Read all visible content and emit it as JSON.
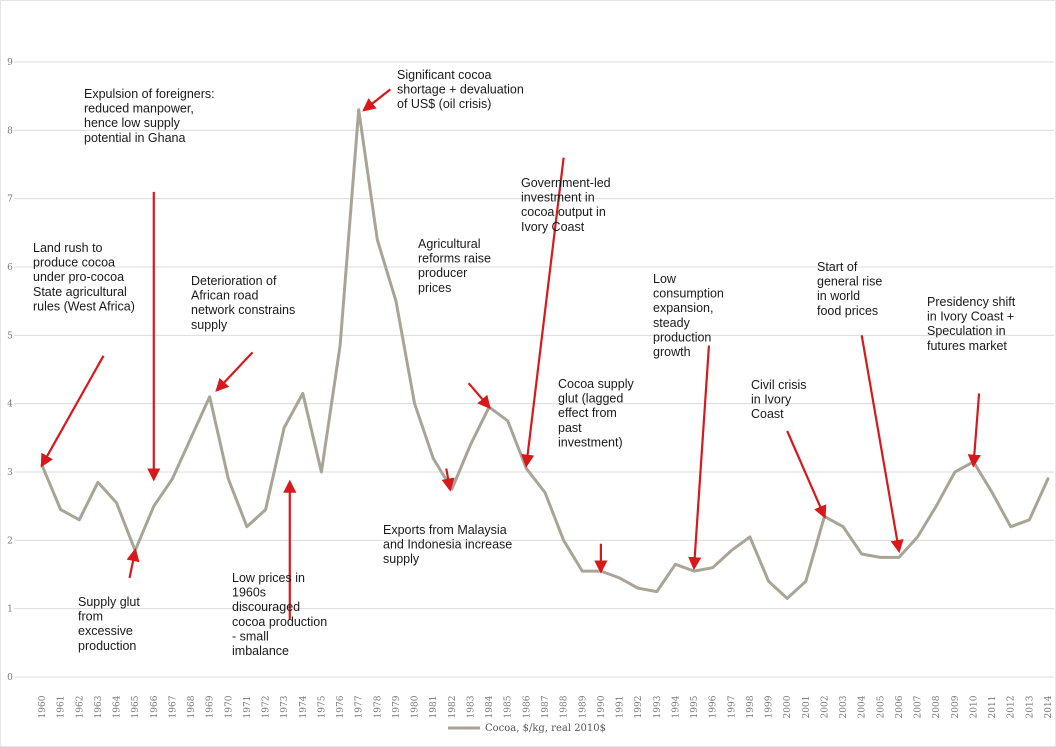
{
  "colors": {
    "line": "#a8a596",
    "grid": "#dcdcdc",
    "arrow": "#d7191c",
    "text": "#1a1a1a",
    "tick": "#777777"
  },
  "legend": {
    "label": "Cocoa, $/kg, real 2010$"
  },
  "chart_data": {
    "type": "line",
    "title": "",
    "xlabel": "",
    "ylabel": "",
    "ylim": [
      0,
      9
    ],
    "yticks": [
      0,
      1,
      2,
      3,
      4,
      5,
      6,
      7,
      8,
      9
    ],
    "grid": true,
    "legend_position": "bottom",
    "x": [
      1960,
      1961,
      1962,
      1963,
      1964,
      1965,
      1966,
      1967,
      1968,
      1969,
      1970,
      1971,
      1972,
      1973,
      1974,
      1975,
      1976,
      1977,
      1978,
      1979,
      1980,
      1981,
      1982,
      1983,
      1984,
      1985,
      1986,
      1987,
      1988,
      1989,
      1990,
      1991,
      1992,
      1993,
      1994,
      1995,
      1996,
      1997,
      1998,
      1999,
      2000,
      2001,
      2002,
      2003,
      2004,
      2005,
      2006,
      2007,
      2008,
      2009,
      2010,
      2011,
      2012,
      2013,
      2014
    ],
    "series": [
      {
        "name": "Cocoa, $/kg, real 2010$",
        "values": [
          3.1,
          2.45,
          2.3,
          2.85,
          2.55,
          1.85,
          2.5,
          2.9,
          3.5,
          4.1,
          2.9,
          2.2,
          2.45,
          3.65,
          4.15,
          3.0,
          4.85,
          8.3,
          6.4,
          5.5,
          4.0,
          3.2,
          2.75,
          3.4,
          3.95,
          3.75,
          3.05,
          2.7,
          2.0,
          1.55,
          1.55,
          1.45,
          1.3,
          1.25,
          1.65,
          1.55,
          1.6,
          1.85,
          2.05,
          1.4,
          1.15,
          1.4,
          2.35,
          2.2,
          1.8,
          1.75,
          1.75,
          2.05,
          2.5,
          3.0,
          3.15,
          2.7,
          2.2,
          2.3,
          2.9
        ]
      }
    ],
    "annotations": [
      {
        "lines": [
          "Land rush to",
          "produce cocoa",
          "under pro-cocoa",
          "State agricultural",
          "rules (West Africa)"
        ],
        "target": [
          1960,
          3.1
        ],
        "from": [
          1963.3,
          4.7
        ]
      },
      {
        "lines": [
          "Expulsion of foreigners:",
          "reduced manpower,",
          "hence low supply",
          "potential in Ghana"
        ],
        "target": [
          1966,
          2.9
        ],
        "from": [
          1966,
          7.1
        ]
      },
      {
        "lines": [
          "Supply glut",
          "from",
          "excessive",
          "production"
        ],
        "target": [
          1965,
          1.85
        ],
        "from": [
          1964.7,
          1.45
        ]
      },
      {
        "lines": [
          "Deterioration of",
          "African road",
          "network constrains",
          "supply"
        ],
        "target": [
          1969.4,
          4.2
        ],
        "from": [
          1971.3,
          4.75
        ]
      },
      {
        "lines": [
          "Low prices in",
          "1960s",
          "discouraged",
          "cocoa production",
          "- small",
          "imbalance"
        ],
        "target": [
          1973.3,
          2.85
        ],
        "from": [
          1973.3,
          0.85
        ]
      },
      {
        "lines": [
          "Significant cocoa",
          "shortage + devaluation",
          "of US$ (oil crisis)"
        ],
        "target": [
          1977.3,
          8.3
        ],
        "from": [
          1978.7,
          8.6
        ]
      },
      {
        "lines": [
          "Agricultural",
          "reforms raise",
          "producer",
          "prices"
        ],
        "target": [
          1984,
          3.95
        ],
        "from": [
          1982.9,
          4.3
        ]
      },
      {
        "lines": [
          "Exports from Malaysia",
          "and Indonesia increase",
          "supply"
        ],
        "target": [
          1981.9,
          2.75
        ],
        "from": [
          1981.7,
          3.05
        ]
      },
      {
        "lines": [
          "Government-led",
          "investment in",
          "cocoa output in",
          "Ivory Coast"
        ],
        "target": [
          1986,
          3.1
        ],
        "from": [
          1988,
          7.6
        ]
      },
      {
        "lines": [
          "Cocoa supply",
          "glut (lagged",
          "effect from",
          "past",
          "investment)"
        ],
        "target": [
          1990,
          1.55
        ],
        "from": [
          1990,
          1.95
        ]
      },
      {
        "lines": [
          "Low",
          "consumption",
          "expansion,",
          "steady",
          "production",
          "growth"
        ],
        "target": [
          1995,
          1.6
        ],
        "from": [
          1995.8,
          4.85
        ]
      },
      {
        "lines": [
          "Civil crisis",
          "in Ivory",
          "Coast"
        ],
        "target": [
          2002,
          2.35
        ],
        "from": [
          2000,
          3.6
        ]
      },
      {
        "lines": [
          "Start of",
          "general rise",
          "in world",
          "food prices"
        ],
        "target": [
          2006,
          1.85
        ],
        "from": [
          2004,
          5.0
        ]
      },
      {
        "lines": [
          "Presidency shift",
          "in Ivory Coast +",
          "Speculation in",
          "futures market"
        ],
        "target": [
          2010,
          3.1
        ],
        "from": [
          2010.3,
          4.15
        ]
      }
    ]
  }
}
